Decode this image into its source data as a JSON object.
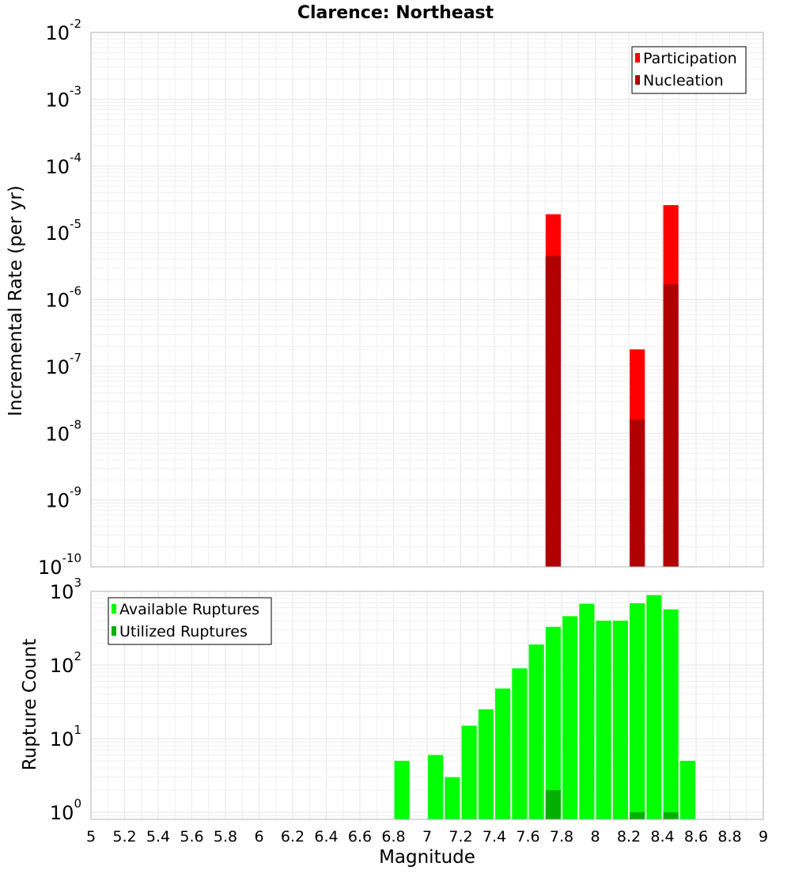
{
  "chart_data": [
    {
      "type": "bar",
      "title": "Clarence: Northeast",
      "xlabel": "",
      "ylabel": "Incremental Rate (per yr)",
      "yscale": "log",
      "ylim": [
        1e-10,
        0.01
      ],
      "xlim": [
        5,
        9
      ],
      "legend_position": "top-right",
      "grid": true,
      "y_tick_exponents": [
        "-10",
        "-9",
        "-8",
        "-7",
        "-6",
        "-5",
        "-4",
        "-3",
        "-2"
      ],
      "y_tick_base": "10",
      "bar_width": 0.09,
      "series": [
        {
          "name": "Participation",
          "color": "#ff0000",
          "points": [
            {
              "x": 7.75,
              "y": 1.9e-05
            },
            {
              "x": 8.25,
              "y": 1.8e-07
            },
            {
              "x": 8.45,
              "y": 2.6e-05
            }
          ]
        },
        {
          "name": "Nucleation",
          "color": "#b00000",
          "points": [
            {
              "x": 7.75,
              "y": 4.5e-06
            },
            {
              "x": 8.25,
              "y": 1.6e-08
            },
            {
              "x": 8.45,
              "y": 1.7e-06
            }
          ]
        }
      ]
    },
    {
      "type": "bar",
      "title": "",
      "xlabel": "Magnitude",
      "ylabel": "Rupture Count",
      "yscale": "log",
      "ylim": [
        0.8,
        1000
      ],
      "xlim": [
        5,
        9
      ],
      "legend_position": "top-left",
      "grid": true,
      "y_tick_exponents": [
        "0",
        "1",
        "2",
        "3"
      ],
      "y_tick_base": "10",
      "x_ticks": [
        "5",
        "5.2",
        "5.4",
        "5.6",
        "5.8",
        "6",
        "6.2",
        "6.4",
        "6.6",
        "6.8",
        "7",
        "7.2",
        "7.4",
        "7.6",
        "7.8",
        "8",
        "8.2",
        "8.4",
        "8.6",
        "8.8",
        "9"
      ],
      "bar_width": 0.09,
      "series": [
        {
          "name": "Available Ruptures",
          "color": "#00ff00",
          "points": [
            {
              "x": 6.85,
              "y": 5
            },
            {
              "x": 7.05,
              "y": 6
            },
            {
              "x": 7.15,
              "y": 3
            },
            {
              "x": 7.25,
              "y": 15
            },
            {
              "x": 7.35,
              "y": 25
            },
            {
              "x": 7.45,
              "y": 48
            },
            {
              "x": 7.55,
              "y": 90
            },
            {
              "x": 7.65,
              "y": 190
            },
            {
              "x": 7.75,
              "y": 330
            },
            {
              "x": 7.85,
              "y": 460
            },
            {
              "x": 7.95,
              "y": 680
            },
            {
              "x": 8.05,
              "y": 400
            },
            {
              "x": 8.15,
              "y": 400
            },
            {
              "x": 8.25,
              "y": 690
            },
            {
              "x": 8.35,
              "y": 890
            },
            {
              "x": 8.45,
              "y": 570
            },
            {
              "x": 8.55,
              "y": 5
            }
          ]
        },
        {
          "name": "Utilized Ruptures",
          "color": "#00b000",
          "points": [
            {
              "x": 7.75,
              "y": 2
            },
            {
              "x": 8.25,
              "y": 1
            },
            {
              "x": 8.45,
              "y": 1
            }
          ]
        }
      ]
    }
  ]
}
